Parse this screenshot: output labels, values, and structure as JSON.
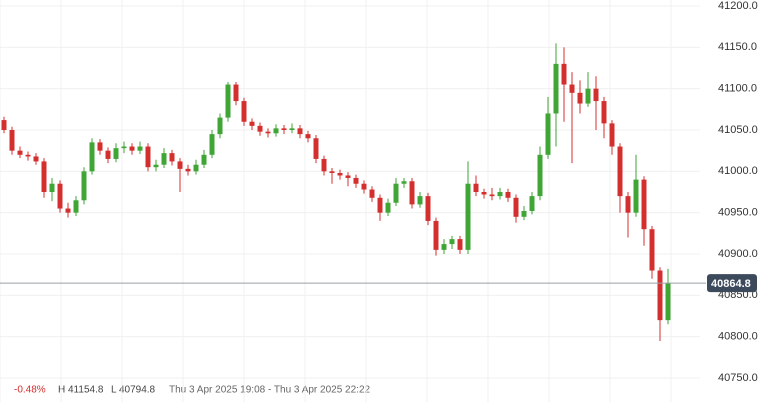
{
  "chart_data": {
    "type": "candlestick",
    "up_color": "#3fa535",
    "down_color": "#d32f2f",
    "grid": true,
    "ylim": [
      40750,
      41200
    ],
    "yticks": [
      {
        "value": 40750,
        "label": "40750.0"
      },
      {
        "value": 40800,
        "label": "40800.0"
      },
      {
        "value": 40850,
        "label": "40850.0"
      },
      {
        "value": 40900,
        "label": "40900.0"
      },
      {
        "value": 40950,
        "label": "40950.0"
      },
      {
        "value": 41000,
        "label": "41000.0"
      },
      {
        "value": 41050,
        "label": "41050.0"
      },
      {
        "value": 41100,
        "label": "41100.0"
      },
      {
        "value": 41150,
        "label": "41150.0"
      },
      {
        "value": 41200,
        "label": "41200.0"
      }
    ],
    "last_price": 40864.8,
    "info": {
      "change": "-0.48%",
      "high": "H 41154.8",
      "low": "L 40794.8",
      "range": "Thu 3 Apr 2025 19:08 - Thu 3 Apr 2025 22:22"
    },
    "candles": [
      [
        41062,
        41066,
        41046,
        41050
      ],
      [
        41050,
        41054,
        41020,
        41025
      ],
      [
        41025,
        41030,
        41016,
        41020
      ],
      [
        41020,
        41024,
        41013,
        41018
      ],
      [
        41018,
        41022,
        41008,
        41012
      ],
      [
        41012,
        41016,
        40968,
        40975
      ],
      [
        40975,
        40992,
        40964,
        40985
      ],
      [
        40985,
        40989,
        40950,
        40955
      ],
      [
        40955,
        40962,
        40944,
        40950
      ],
      [
        40950,
        40970,
        40946,
        40965
      ],
      [
        40965,
        41005,
        40960,
        41000
      ],
      [
        41000,
        41040,
        40996,
        41035
      ],
      [
        41035,
        41039,
        41020,
        41025
      ],
      [
        41025,
        41029,
        41010,
        41015
      ],
      [
        41015,
        41034,
        41011,
        41028
      ],
      [
        41028,
        41036,
        41022,
        41030
      ],
      [
        41030,
        41034,
        41020,
        41025
      ],
      [
        41025,
        41036,
        41021,
        41030
      ],
      [
        41030,
        41034,
        41000,
        41005
      ],
      [
        41005,
        41014,
        41000,
        41008
      ],
      [
        41008,
        41028,
        41004,
        41022
      ],
      [
        41022,
        41026,
        41007,
        41012
      ],
      [
        41012,
        41016,
        40975,
        41003
      ],
      [
        41003,
        41008,
        40995,
        41000
      ],
      [
        41000,
        41014,
        40996,
        41008
      ],
      [
        41008,
        41026,
        41004,
        41020
      ],
      [
        41020,
        41050,
        41016,
        41045
      ],
      [
        41045,
        41070,
        41040,
        41065
      ],
      [
        41065,
        41108,
        41060,
        41105
      ],
      [
        41105,
        41108,
        41080,
        41085
      ],
      [
        41085,
        41089,
        41055,
        41060
      ],
      [
        41060,
        41064,
        41050,
        41055
      ],
      [
        41055,
        41059,
        41043,
        41048
      ],
      [
        41048,
        41052,
        41041,
        41046
      ],
      [
        41046,
        41057,
        41042,
        41052
      ],
      [
        41052,
        41056,
        41045,
        41050
      ],
      [
        41050,
        41058,
        41046,
        41052
      ],
      [
        41052,
        41056,
        41040,
        41045
      ],
      [
        41045,
        41049,
        41035,
        41040
      ],
      [
        41040,
        41044,
        41010,
        41015
      ],
      [
        41015,
        41019,
        40995,
        41000
      ],
      [
        41000,
        41004,
        40985,
        40998
      ],
      [
        40998,
        41002,
        40990,
        40995
      ],
      [
        40995,
        40999,
        40982,
        40992
      ],
      [
        40992,
        40996,
        40980,
        40985
      ],
      [
        40985,
        40989,
        40973,
        40978
      ],
      [
        40978,
        40982,
        40963,
        40968
      ],
      [
        40968,
        40972,
        40940,
        40950
      ],
      [
        40950,
        40967,
        40946,
        40962
      ],
      [
        40962,
        40992,
        40958,
        40985
      ],
      [
        40985,
        40992,
        40980,
        40988
      ],
      [
        40988,
        40992,
        40955,
        40960
      ],
      [
        40960,
        40975,
        40956,
        40970
      ],
      [
        40970,
        40974,
        40935,
        40940
      ],
      [
        40940,
        40944,
        40898,
        40905
      ],
      [
        40905,
        40918,
        40900,
        40912
      ],
      [
        40912,
        40922,
        40906,
        40918
      ],
      [
        40918,
        40922,
        40900,
        40905
      ],
      [
        40905,
        41012,
        40900,
        40985
      ],
      [
        40985,
        40995,
        40970,
        40975
      ],
      [
        40975,
        40979,
        40967,
        40972
      ],
      [
        40972,
        40980,
        40965,
        40970
      ],
      [
        40970,
        40980,
        40966,
        40975
      ],
      [
        40975,
        40979,
        40963,
        40968
      ],
      [
        40968,
        40972,
        40938,
        40945
      ],
      [
        40945,
        40958,
        40941,
        40952
      ],
      [
        40952,
        40975,
        40948,
        40970
      ],
      [
        40970,
        41030,
        40965,
        41020
      ],
      [
        41020,
        41090,
        41015,
        41070
      ],
      [
        41070,
        41154.8,
        41030,
        41130
      ],
      [
        41130,
        41150,
        41060,
        41105
      ],
      [
        41105,
        41120,
        41010,
        41095
      ],
      [
        41095,
        41110,
        41070,
        41082
      ],
      [
        41082,
        41120,
        41078,
        41100
      ],
      [
        41100,
        41115,
        41050,
        41085
      ],
      [
        41085,
        41090,
        41040,
        41058
      ],
      [
        41058,
        41062,
        41020,
        41030
      ],
      [
        41030,
        41034,
        40950,
        40970
      ],
      [
        40970,
        40975,
        40920,
        40950
      ],
      [
        40950,
        41020,
        40945,
        40990
      ],
      [
        40990,
        40994,
        40910,
        40930
      ],
      [
        40930,
        40934,
        40870,
        40880
      ],
      [
        40880,
        40884,
        40794.8,
        40820
      ],
      [
        40820,
        40882,
        40815,
        40864.8
      ]
    ]
  }
}
